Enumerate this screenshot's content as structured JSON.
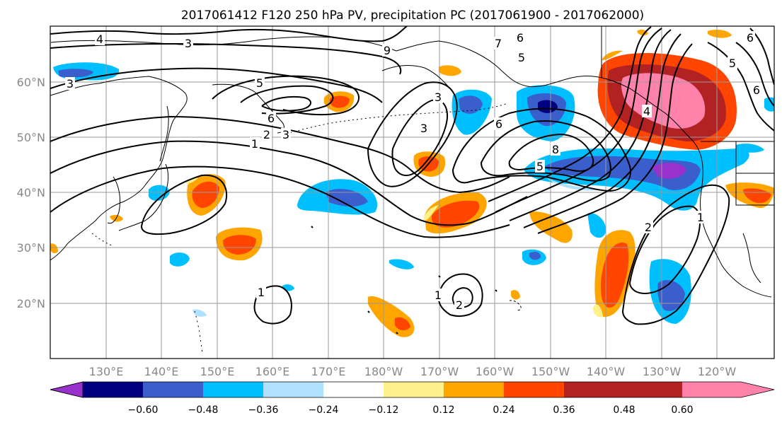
{
  "title": "2017061412 F120 250 hPa PV, precipitation PC (2017061900 - 2017062000)",
  "map": {
    "lat_labels": [
      "60°N",
      "50°N",
      "40°N",
      "30°N",
      "20°N"
    ],
    "lon_labels": [
      "130°E",
      "140°E",
      "150°E",
      "160°E",
      "170°E",
      "180°W",
      "170°W",
      "160°W",
      "150°W",
      "140°W",
      "130°W",
      "120°W"
    ],
    "pv_contour_labels": [
      "4",
      "3",
      "3",
      "9",
      "3",
      "6",
      "5",
      "5",
      "6",
      "3",
      "2",
      "1",
      "3",
      "6",
      "8",
      "5",
      "5",
      "6",
      "4",
      "7",
      "2",
      "1",
      "1",
      "2",
      "1",
      "6"
    ]
  },
  "colorbar": {
    "ticks": [
      "−0.60",
      "−0.48",
      "−0.36",
      "−0.24",
      "−0.12",
      "0.12",
      "0.24",
      "0.36",
      "0.48",
      "0.60"
    ],
    "colors": [
      "#9932cc",
      "#000080",
      "#3a5fcd",
      "#00bfff",
      "#b0e2ff",
      "#ffffff",
      "#fff08c",
      "#ffa500",
      "#ff4500",
      "#b22222",
      "#ff82ab"
    ]
  },
  "colors": {
    "contour": "#000000",
    "coast": "#000000",
    "grid": "#999999"
  }
}
